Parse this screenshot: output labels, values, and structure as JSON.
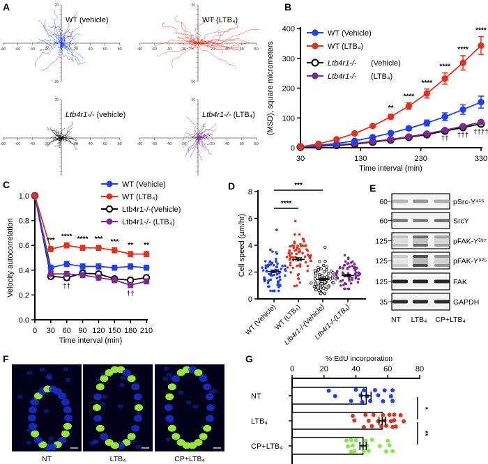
{
  "panel_labels": {
    "A": "A",
    "B": "B",
    "C": "C",
    "D": "D",
    "E": "E",
    "F": "F",
    "G": "G"
  },
  "colors": {
    "wt_vehicle": "#1f3ff0",
    "wt_ltb4": "#e2321f",
    "ko_vehicle": "#000000",
    "ko_ltb4": "#7d2a92",
    "cp_ltb4": "#86e64a",
    "dapi": "#1c2fd0",
    "edu": "#9cf23a"
  },
  "chart_data": [
    {
      "id": "A",
      "type": "line",
      "description_kind": "cell migration track plots",
      "xlim": [
        -80,
        80
      ],
      "ylim": [
        -20,
        20
      ],
      "x_ticks": [
        -80,
        -60,
        -40,
        -20,
        20,
        40,
        60,
        80
      ],
      "y_ticks": [
        20,
        -20
      ],
      "subplots": [
        {
          "label": "WT (vehicle)",
          "color_key": "wt_vehicle"
        },
        {
          "label": "WT (LTB₄)",
          "color_key": "wt_ltb4"
        },
        {
          "label": "Ltb4r1-/-",
          "label_suffix": " (vehicle)",
          "color_key": "ko_vehicle"
        },
        {
          "label": "Ltb4r1-/-",
          "label_suffix": " (LTB₄)",
          "color_key": "ko_ltb4"
        }
      ]
    },
    {
      "id": "B",
      "type": "line",
      "xlabel": "Time interval (min)",
      "ylabel": "(MSD), square micrometers",
      "xlim": [
        30,
        330
      ],
      "ylim": [
        0,
        400
      ],
      "x_ticks": [
        30,
        130,
        230,
        330
      ],
      "y_ticks": [
        0,
        100,
        200,
        300,
        400
      ],
      "x": [
        30,
        60,
        90,
        120,
        150,
        180,
        210,
        240,
        270,
        300,
        330
      ],
      "legend": "top-left",
      "series": [
        {
          "name": "WT (Vehicle)",
          "color_key": "wt_vehicle",
          "values": [
            3,
            8,
            14,
            23,
            35,
            49,
            65,
            83,
            104,
            128,
            153
          ],
          "err": [
            1,
            2,
            3,
            4,
            5,
            6,
            7,
            10,
            13,
            16,
            20
          ]
        },
        {
          "name": "WT (LTB₄)",
          "color_key": "wt_ltb4",
          "values": [
            3,
            13,
            28,
            48,
            73,
            104,
            140,
            182,
            232,
            285,
            343
          ],
          "err": [
            1,
            3,
            4,
            5,
            6,
            8,
            11,
            15,
            19,
            24,
            30
          ]
        },
        {
          "name": "Ltb4r1-/-",
          "name_suffix": "(Vehicle)",
          "color_key": "ko_vehicle",
          "open": true,
          "values": [
            2,
            5,
            8,
            12,
            19,
            26,
            35,
            44,
            56,
            68,
            80
          ],
          "err": [
            1,
            1,
            2,
            2,
            2,
            3,
            3,
            4,
            4,
            5,
            6
          ]
        },
        {
          "name": "Ltb4r1-/-",
          "name_suffix": "(LTB₄)",
          "color_key": "ko_ltb4",
          "values": [
            2,
            6,
            10,
            14,
            21,
            28,
            37,
            47,
            59,
            72,
            86
          ],
          "err": [
            1,
            1,
            2,
            2,
            2,
            3,
            3,
            4,
            4,
            5,
            6
          ]
        }
      ],
      "annotations_above": [
        {
          "x": 180,
          "text": "**"
        },
        {
          "x": 210,
          "text": "****"
        },
        {
          "x": 240,
          "text": "****"
        },
        {
          "x": 270,
          "text": "****"
        },
        {
          "x": 300,
          "text": "****"
        },
        {
          "x": 330,
          "text": "****"
        }
      ],
      "annotations_below": [
        {
          "x": 270,
          "text": "††"
        },
        {
          "x": 300,
          "text": "†††"
        },
        {
          "x": 330,
          "text": "††††"
        }
      ]
    },
    {
      "id": "C",
      "type": "line",
      "xlabel": "Time interval (min)",
      "ylabel": "Velocity autocorrelation",
      "xlim": [
        0,
        210
      ],
      "ylim": [
        0,
        1.0
      ],
      "x_ticks": [
        0,
        30,
        60,
        90,
        120,
        150,
        180,
        210
      ],
      "y_ticks": [
        "0.0",
        "0.2",
        "0.4",
        "0.6",
        "0.8",
        "1.0"
      ],
      "x": [
        0,
        30,
        60,
        90,
        120,
        150,
        180,
        210
      ],
      "legend": "top-right",
      "series": [
        {
          "name": "WT (Vehicle)",
          "color_key": "wt_vehicle",
          "values": [
            1.0,
            0.42,
            0.45,
            0.43,
            0.43,
            0.42,
            0.43,
            0.42
          ],
          "err": [
            0,
            0.02,
            0.02,
            0.02,
            0.02,
            0.02,
            0.02,
            0.02
          ]
        },
        {
          "name": "WT (LTB₄)",
          "color_key": "wt_ltb4",
          "values": [
            1.0,
            0.57,
            0.6,
            0.58,
            0.58,
            0.56,
            0.53,
            0.53
          ],
          "err": [
            0,
            0.02,
            0.02,
            0.02,
            0.02,
            0.02,
            0.02,
            0.02
          ]
        },
        {
          "name": "Ltb4r1-/-(Vehicle)",
          "color_key": "ko_vehicle",
          "open": true,
          "values": [
            1.0,
            0.35,
            0.34,
            0.375,
            0.37,
            0.33,
            0.32,
            0.34
          ],
          "err": [
            0,
            0.02,
            0.02,
            0.02,
            0.02,
            0.02,
            0.02,
            0.02
          ]
        },
        {
          "name": "Ltb4r1-/- (LTB₄)",
          "color_key": "ko_ltb4",
          "values": [
            1.0,
            0.37,
            0.37,
            0.36,
            0.34,
            0.32,
            0.28,
            0.31
          ],
          "err": [
            0,
            0.02,
            0.02,
            0.02,
            0.02,
            0.02,
            0.02,
            0.02
          ]
        }
      ],
      "annotations_above": [
        {
          "x": 30,
          "text": "***"
        },
        {
          "x": 60,
          "text": "****"
        },
        {
          "x": 90,
          "text": "****"
        },
        {
          "x": 120,
          "text": "***"
        },
        {
          "x": 150,
          "text": "***"
        },
        {
          "x": 180,
          "text": "**"
        },
        {
          "x": 210,
          "text": "**"
        }
      ],
      "annotations_below": [
        {
          "x": 60,
          "text": "††"
        },
        {
          "x": 180,
          "text": "††"
        }
      ]
    },
    {
      "id": "D",
      "type": "scatter",
      "ylabel": "Cell speed (µm/hr)",
      "ylim": [
        0,
        8
      ],
      "y_ticks": [
        0,
        2,
        4,
        6,
        8
      ],
      "categories": [
        "WT (Vehicle)",
        "WT (LTB₄)",
        "Ltb4r1-/-(Vehicle)",
        "Ltb4r1-/-(LTB₄)"
      ],
      "groups": [
        {
          "color_key": "wt_vehicle",
          "mean": 2.05,
          "sem": 0.1,
          "min": 0.6,
          "max": 3.8,
          "outlier": 5.15,
          "n": 70
        },
        {
          "color_key": "wt_ltb4",
          "mean": 2.95,
          "sem": 0.12,
          "min": 0.95,
          "max": 4.8,
          "outlier": 5.8,
          "n": 70
        },
        {
          "color_key": "ko_vehicle",
          "open": true,
          "mean": 1.45,
          "sem": 0.08,
          "min": 0.4,
          "max": 2.8,
          "outlier": 3.85,
          "n": 70
        },
        {
          "color_key": "ko_ltb4",
          "mean": 1.75,
          "sem": 0.07,
          "min": 0.75,
          "max": 3.25,
          "n": 70
        }
      ],
      "comparisons": [
        {
          "from": 0,
          "to": 2,
          "text": "***"
        },
        {
          "from": 0,
          "to": 1,
          "text": "****"
        }
      ]
    },
    {
      "id": "G",
      "type": "bar",
      "orientation": "horizontal",
      "xlabel": "% EdU incorporation",
      "xlim": [
        0,
        80
      ],
      "x_ticks": [
        0,
        20,
        40,
        60,
        80
      ],
      "categories": [
        "NT",
        "LTB₄",
        "CP+LTB₄"
      ],
      "values": [
        46.5,
        56.5,
        44.5
      ],
      "sem": [
        3.0,
        2.0,
        2.0
      ],
      "points": [
        [
          23,
          27,
          37,
          40,
          43,
          44,
          45,
          47,
          49,
          52,
          54,
          57,
          58,
          62,
          63,
          63
        ],
        [
          38,
          39,
          45,
          46,
          48,
          50,
          51,
          54,
          56,
          57,
          58,
          59,
          61,
          62,
          63,
          64,
          64,
          65,
          68,
          70
        ],
        [
          34,
          35,
          37,
          37,
          38,
          39,
          40,
          44,
          45,
          46,
          47,
          48,
          50,
          55,
          59,
          60,
          61,
          63
        ]
      ],
      "point_color_keys": [
        "wt_vehicle",
        "wt_ltb4",
        "cp_ltb4"
      ],
      "comparisons": [
        {
          "from": 0,
          "to": 1,
          "text": "*"
        },
        {
          "from": 1,
          "to": 2,
          "text": "**"
        }
      ]
    }
  ],
  "blot": {
    "rows": [
      {
        "mw": "60",
        "protein": "pSrc-Y⁴¹⁶",
        "intensity": [
          0.25,
          0.4,
          0.3
        ],
        "bands": 1
      },
      {
        "mw": "60",
        "protein": "SrcY",
        "intensity": [
          0.5,
          0.5,
          0.55
        ],
        "bands": 1
      },
      {
        "mw": "125",
        "protein": "pFAK-Y³⁹⁷",
        "intensity": [
          0.2,
          0.6,
          0.35
        ],
        "bands": 2
      },
      {
        "mw": "125",
        "protein": "pFAK-Y⁹²⁵",
        "intensity": [
          0.15,
          0.75,
          0.4
        ],
        "bands": 2
      },
      {
        "mw": "125",
        "protein": "FAK",
        "intensity": [
          0.95,
          0.95,
          0.95
        ],
        "bands": 1
      },
      {
        "mw": "35",
        "protein": "GAPDH",
        "intensity": [
          0.9,
          0.9,
          0.9
        ],
        "bands": 1
      }
    ],
    "lanes": [
      "NT",
      "LTB₄",
      "CP+LTB₄"
    ]
  },
  "micrographs": {
    "labels": [
      "NT",
      "LTB₄",
      "CP+LTB₄"
    ],
    "edu_fraction": [
      0.3,
      0.75,
      0.55
    ]
  }
}
